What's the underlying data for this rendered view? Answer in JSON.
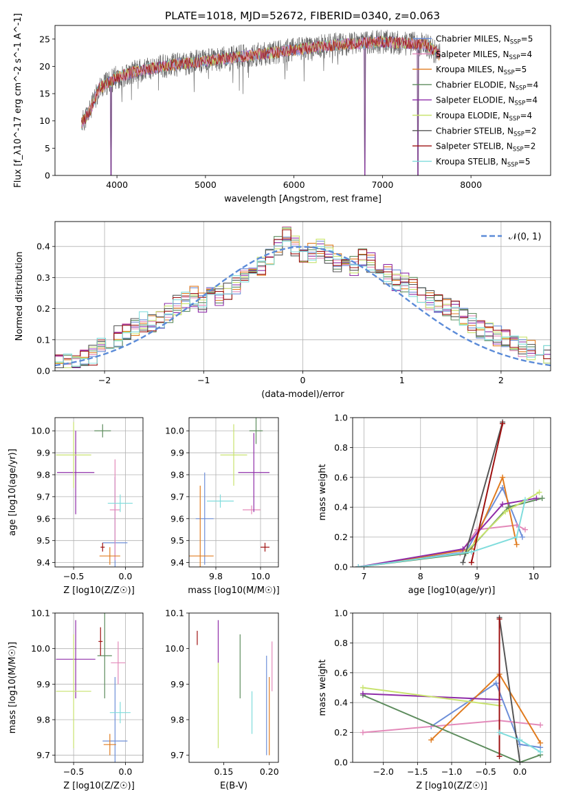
{
  "title": "PLATE=1018, MJD=52672, FIBERID=0340, z=0.063",
  "series_colors": [
    "#6c8ed8",
    "#e389b9",
    "#e07b1f",
    "#5d8c5d",
    "#8e2ba8",
    "#c8e36e",
    "#555555",
    "#9e1010",
    "#7fdcdc"
  ],
  "chart_data": [
    {
      "id": "spectrum",
      "type": "line",
      "xlabel": "wavelength [Angstrom, rest frame]",
      "ylabel": "Flux [f_λ10^-17 erg cm^-2 s^-1 A^-1]",
      "xlim": [
        3300,
        8900
      ],
      "ylim": [
        0,
        27.5
      ],
      "xticks": [
        4000,
        5000,
        6000,
        7000,
        8000
      ],
      "yticks": [
        0,
        5,
        10,
        15,
        20,
        25
      ],
      "grid": false,
      "legend_position": "right",
      "legend": [
        "Chabrier MILES, N_SSP=5",
        "Salpeter MILES, N_SSP=4",
        "Kroupa MILES, N_SSP=5",
        "Chabrier ELODIE, N_SSP=4",
        "Salpeter ELODIE, N_SSP=4",
        "Kroupa ELODIE, N_SSP=4",
        "Chabrier STELIB, N_SSP=2",
        "Salpeter STELIB, N_SSP=2",
        "Kroupa STELIB, N_SSP=5"
      ],
      "continuum": [
        [
          3600,
          9.5
        ],
        [
          3700,
          12
        ],
        [
          3800,
          16
        ],
        [
          4000,
          18
        ],
        [
          4200,
          19
        ],
        [
          4500,
          20
        ],
        [
          5000,
          21
        ],
        [
          5500,
          22
        ],
        [
          6000,
          23
        ],
        [
          6500,
          24
        ],
        [
          7000,
          24.5
        ],
        [
          7500,
          24
        ],
        [
          7650,
          22
        ]
      ],
      "dips": [
        [
          3934,
          0
        ],
        [
          6800,
          0
        ],
        [
          7400,
          0
        ]
      ]
    },
    {
      "id": "residuals",
      "type": "histogram",
      "xlabel": "(data-model)/error",
      "ylabel": "Normed distribution",
      "xlim": [
        -2.5,
        2.5
      ],
      "ylim": [
        0,
        0.48
      ],
      "xticks": [
        -2,
        -1,
        0,
        1,
        2
      ],
      "yticks": [
        0.0,
        0.1,
        0.2,
        0.3,
        0.4
      ],
      "grid": true,
      "legend_position": "top-right",
      "reference_curve": "N(0,1)",
      "reference_label": "𝒩(0, 1)",
      "bin_width": 0.1,
      "base_heights": [
        0.02,
        0.02,
        0.03,
        0.04,
        0.05,
        0.07,
        0.09,
        0.11,
        0.12,
        0.14,
        0.16,
        0.16,
        0.17,
        0.19,
        0.21,
        0.22,
        0.24,
        0.22,
        0.25,
        0.24,
        0.26,
        0.28,
        0.31,
        0.33,
        0.34,
        0.36,
        0.4,
        0.43,
        0.4,
        0.38,
        0.38,
        0.39,
        0.37,
        0.35,
        0.34,
        0.34,
        0.36,
        0.35,
        0.33,
        0.31,
        0.29,
        0.28,
        0.27,
        0.25,
        0.23,
        0.21,
        0.2,
        0.19,
        0.17,
        0.15,
        0.13,
        0.12,
        0.11,
        0.1,
        0.09,
        0.08,
        0.07,
        0.06,
        0.05,
        0.04
      ]
    },
    {
      "id": "age_vs_Z",
      "type": "errorbar",
      "xlabel": "Z [log10(Z/Z☉)]",
      "ylabel": "age  [log10(age/yr)]",
      "xlim": [
        -0.68,
        0.17
      ],
      "ylim": [
        9.38,
        10.06
      ],
      "xticks": [
        -0.5,
        0.0
      ],
      "xticklabels": [
        "−0.5",
        "0.0"
      ],
      "yticks": [
        9.4,
        9.5,
        9.6,
        9.7,
        9.8,
        9.9,
        10.0
      ],
      "grid": true,
      "points": [
        {
          "x": -0.1,
          "y": 9.49,
          "xerr": 0.12,
          "yerr": 0.3,
          "c": 0
        },
        {
          "x": -0.1,
          "y": 9.64,
          "xerr": 0.05,
          "yerr": 0.23,
          "c": 1
        },
        {
          "x": -0.15,
          "y": 9.43,
          "xerr": 0.1,
          "yerr": 0.04,
          "c": 2
        },
        {
          "x": -0.22,
          "y": 10.0,
          "xerr": 0.08,
          "yerr": 0.03,
          "c": 3
        },
        {
          "x": -0.48,
          "y": 9.81,
          "xerr": 0.18,
          "yerr": 0.19,
          "c": 4
        },
        {
          "x": -0.5,
          "y": 9.89,
          "xerr": 0.17,
          "yerr": 0.15,
          "c": 5
        },
        {
          "x": -0.22,
          "y": 9.47,
          "xerr": 0.02,
          "yerr": 0.02,
          "c": 7
        },
        {
          "x": -0.05,
          "y": 9.67,
          "xerr": 0.12,
          "yerr": 0.04,
          "c": 8
        }
      ]
    },
    {
      "id": "age_vs_mass",
      "type": "errorbar",
      "xlabel": "mass [log10(M/M☉)]",
      "ylabel": "",
      "xlim": [
        9.68,
        10.08
      ],
      "ylim": [
        9.38,
        10.06
      ],
      "xticks": [
        9.8,
        10.0
      ],
      "xticklabels": [
        "9.8",
        "10.0"
      ],
      "yticks": [
        9.4,
        9.5,
        9.6,
        9.7,
        9.8,
        9.9,
        10.0
      ],
      "grid": true,
      "points": [
        {
          "x": 9.75,
          "y": 9.6,
          "xerr": 0.04,
          "yerr": 0.21,
          "c": 0
        },
        {
          "x": 9.96,
          "y": 9.64,
          "xerr": 0.04,
          "yerr": 0.02,
          "c": 1
        },
        {
          "x": 9.73,
          "y": 9.43,
          "xerr": 0.06,
          "yerr": 0.32,
          "c": 2
        },
        {
          "x": 9.98,
          "y": 10.0,
          "xerr": 0.03,
          "yerr": 0.06,
          "c": 3
        },
        {
          "x": 9.97,
          "y": 9.81,
          "xerr": 0.07,
          "yerr": 0.18,
          "c": 4
        },
        {
          "x": 9.88,
          "y": 9.89,
          "xerr": 0.06,
          "yerr": 0.14,
          "c": 5
        },
        {
          "x": 10.02,
          "y": 9.47,
          "xerr": 0.02,
          "yerr": 0.02,
          "c": 7
        },
        {
          "x": 9.82,
          "y": 9.68,
          "xerr": 0.06,
          "yerr": 0.03,
          "c": 8
        }
      ]
    },
    {
      "id": "weight_vs_age",
      "type": "line",
      "xlabel": "age  [log10(age/yr)]",
      "ylabel": "mass weight",
      "xlim": [
        6.8,
        10.3
      ],
      "ylim": [
        0,
        1.0
      ],
      "xticks": [
        7,
        8,
        9,
        10
      ],
      "yticks": [
        0.0,
        0.2,
        0.4,
        0.6,
        0.8,
        1.0
      ],
      "grid": true,
      "series": [
        {
          "c": 0,
          "x": [
            6.9,
            8.8,
            9.45,
            9.8
          ],
          "y": [
            0,
            0.1,
            0.53,
            0.2
          ]
        },
        {
          "c": 1,
          "x": [
            8.7,
            9.0,
            9.7,
            9.85
          ],
          "y": [
            0.09,
            0.25,
            0.28,
            0.25
          ]
        },
        {
          "c": 2,
          "x": [
            6.9,
            8.9,
            9.45,
            9.7
          ],
          "y": [
            0,
            0.12,
            0.6,
            0.15
          ]
        },
        {
          "c": 3,
          "x": [
            6.9,
            8.8,
            9.55,
            10.15
          ],
          "y": [
            0,
            0.09,
            0.4,
            0.46
          ]
        },
        {
          "c": 4,
          "x": [
            6.9,
            8.75,
            9.45,
            10.05
          ],
          "y": [
            0,
            0.12,
            0.42,
            0.46
          ]
        },
        {
          "c": 5,
          "x": [
            8.8,
            9.5,
            10.1
          ],
          "y": [
            0.1,
            0.37,
            0.5
          ]
        },
        {
          "c": 6,
          "x": [
            8.75,
            9.45
          ],
          "y": [
            0.03,
            0.97
          ]
        },
        {
          "c": 7,
          "x": [
            8.9,
            9.45
          ],
          "y": [
            0.03,
            0.96
          ]
        },
        {
          "c": 8,
          "x": [
            6.9,
            8.9,
            9.7,
            9.85
          ],
          "y": [
            0,
            0.1,
            0.2,
            0.45
          ]
        }
      ]
    },
    {
      "id": "mass_vs_Z",
      "type": "errorbar",
      "xlabel": "Z [log10(Z/Z☉)]",
      "ylabel": "mass [log10(M/M☉)]",
      "xlim": [
        -0.68,
        0.17
      ],
      "ylim": [
        9.68,
        10.1
      ],
      "xticks": [
        -0.5,
        0.0
      ],
      "xticklabels": [
        "−0.5",
        "0.0"
      ],
      "yticks": [
        9.7,
        9.8,
        9.9,
        10.0,
        10.1
      ],
      "grid": true,
      "points": [
        {
          "x": -0.1,
          "y": 9.74,
          "xerr": 0.12,
          "yerr": 0.18,
          "c": 0
        },
        {
          "x": -0.07,
          "y": 9.96,
          "xerr": 0.07,
          "yerr": 0.06,
          "c": 1
        },
        {
          "x": -0.15,
          "y": 9.73,
          "xerr": 0.06,
          "yerr": 0.03,
          "c": 2
        },
        {
          "x": -0.2,
          "y": 9.98,
          "xerr": 0.07,
          "yerr": 0.12,
          "c": 3
        },
        {
          "x": -0.48,
          "y": 9.97,
          "xerr": 0.19,
          "yerr": 0.11,
          "c": 4
        },
        {
          "x": -0.5,
          "y": 9.88,
          "xerr": 0.17,
          "yerr": 0.16,
          "c": 5
        },
        {
          "x": -0.24,
          "y": 10.02,
          "xerr": 0.02,
          "yerr": 0.04,
          "c": 7
        },
        {
          "x": -0.05,
          "y": 9.82,
          "xerr": 0.1,
          "yerr": 0.03,
          "c": 8
        }
      ]
    },
    {
      "id": "mass_vs_EBV",
      "type": "errorbar",
      "xlabel": "E(B-V)",
      "ylabel": "",
      "xlim": [
        0.112,
        0.21
      ],
      "ylim": [
        9.68,
        10.1
      ],
      "xticks": [
        0.15,
        0.2
      ],
      "xticklabels": [
        "0.15",
        "0.20"
      ],
      "yticks": [
        9.7,
        9.8,
        9.9,
        10.0,
        10.1
      ],
      "grid": false,
      "points": [
        {
          "x": 0.197,
          "y": 9.84,
          "xerr": 0,
          "yerr": 0.14,
          "c": 0
        },
        {
          "x": 0.203,
          "y": 9.95,
          "xerr": 0,
          "yerr": 0.07,
          "c": 1
        },
        {
          "x": 0.2,
          "y": 9.81,
          "xerr": 0,
          "yerr": 0.11,
          "c": 2
        },
        {
          "x": 0.168,
          "y": 9.95,
          "xerr": 0,
          "yerr": 0.09,
          "c": 3
        },
        {
          "x": 0.144,
          "y": 10.02,
          "xerr": 0,
          "yerr": 0.06,
          "c": 4
        },
        {
          "x": 0.144,
          "y": 9.84,
          "xerr": 0,
          "yerr": 0.12,
          "c": 5
        },
        {
          "x": 0.121,
          "y": 10.03,
          "xerr": 0,
          "yerr": 0.02,
          "c": 7
        },
        {
          "x": 0.181,
          "y": 9.82,
          "xerr": 0,
          "yerr": 0.06,
          "c": 8
        }
      ]
    },
    {
      "id": "weight_vs_Z",
      "type": "line",
      "xlabel": "Z [log10(Z/Z☉)]",
      "ylabel": "mass weight",
      "xlim": [
        -2.45,
        0.45
      ],
      "ylim": [
        0,
        1.0
      ],
      "xticks": [
        -2.0,
        -1.5,
        -1.0,
        -0.5,
        0.0
      ],
      "xticklabels": [
        "−2.0",
        "−1.5",
        "−1.0",
        "−0.5",
        "0.0"
      ],
      "yticks": [
        0.0,
        0.2,
        0.4,
        0.6,
        0.8,
        1.0
      ],
      "grid": true,
      "series": [
        {
          "c": 0,
          "x": [
            -1.3,
            -0.35,
            0.0,
            0.3
          ],
          "y": [
            0.24,
            0.53,
            0.12,
            0.1
          ]
        },
        {
          "c": 1,
          "x": [
            -2.3,
            -0.3,
            0.3
          ],
          "y": [
            0.2,
            0.28,
            0.25
          ]
        },
        {
          "c": 2,
          "x": [
            -1.3,
            -0.3,
            0.3
          ],
          "y": [
            0.15,
            0.59,
            0.13
          ]
        },
        {
          "c": 3,
          "x": [
            -2.3,
            0.0,
            0.3
          ],
          "y": [
            0.45,
            0.0,
            0.05
          ]
        },
        {
          "c": 4,
          "x": [
            -2.3,
            -0.3
          ],
          "y": [
            0.46,
            0.42
          ]
        },
        {
          "c": 5,
          "x": [
            -2.3,
            -0.3
          ],
          "y": [
            0.5,
            0.38
          ]
        },
        {
          "c": 6,
          "x": [
            -0.3,
            0.0
          ],
          "y": [
            0.97,
            0.0
          ]
        },
        {
          "c": 7,
          "x": [
            -0.3,
            -0.3
          ],
          "y": [
            0.04,
            0.96
          ]
        },
        {
          "c": 8,
          "x": [
            -0.3,
            0.0,
            0.3
          ],
          "y": [
            0.2,
            0.15,
            0.07
          ]
        }
      ]
    }
  ]
}
